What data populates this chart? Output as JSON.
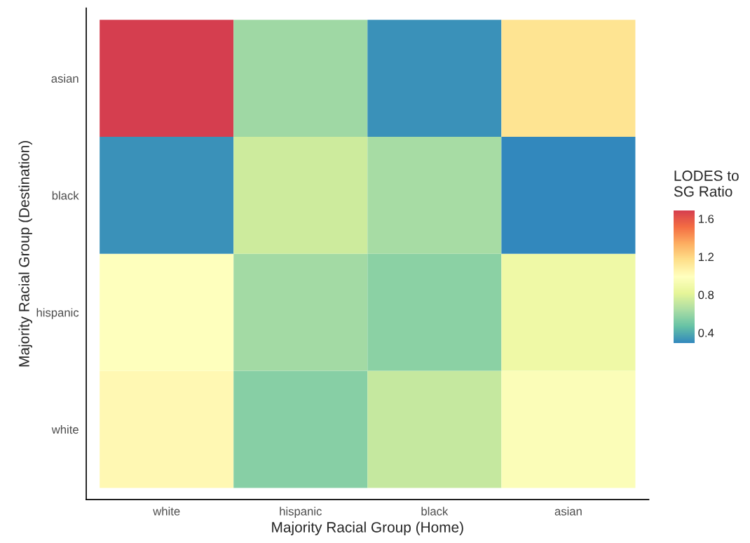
{
  "chart_data": {
    "type": "heatmap",
    "xlabel": "Majority Racial Group (Home)",
    "ylabel": "Majority Racial Group (Destination)",
    "clabel": "LODES to\nSG Ratio",
    "categories": [
      "white",
      "hispanic",
      "black",
      "asian"
    ],
    "y_categories": [
      "asian",
      "black",
      "hispanic",
      "white"
    ],
    "cells": [
      [
        1.69,
        0.61,
        0.32,
        1.14
      ],
      [
        0.32,
        0.74,
        0.63,
        0.29
      ],
      [
        0.98,
        0.62,
        0.56,
        0.88
      ],
      [
        1.03,
        0.55,
        0.72,
        0.96
      ]
    ],
    "colors": [
      "#3288bd",
      "#66c2a5",
      "#abdda4",
      "#e6f598",
      "#ffffbf",
      "#fee08b",
      "#fdae61",
      "#f46d43",
      "#d53e4f"
    ],
    "clim": [
      0.29,
      1.69
    ],
    "cticks": [
      0.4,
      0.8,
      1.2,
      1.6
    ],
    "grid": false
  }
}
